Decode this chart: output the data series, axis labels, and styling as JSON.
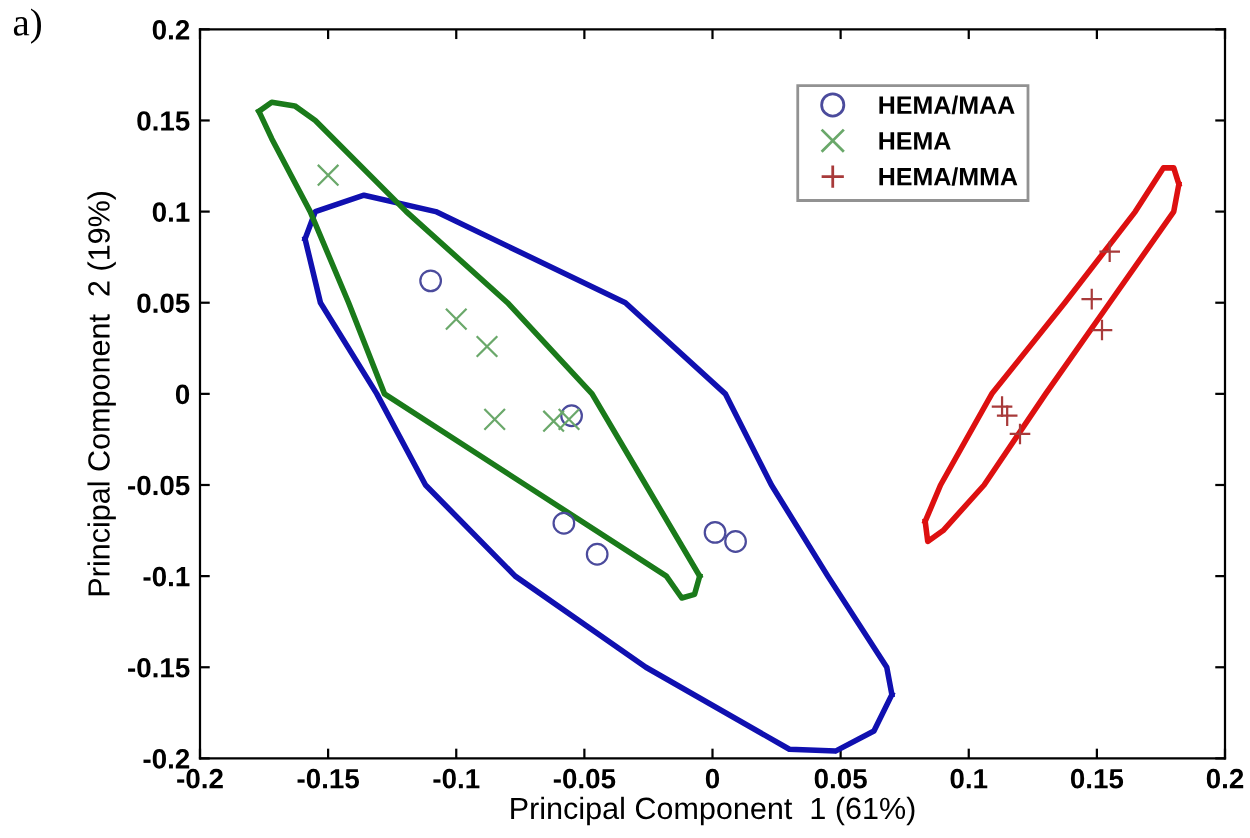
{
  "chart_data": {
    "type": "scatter",
    "xlabel": "Principal Component  1 (61%)",
    "ylabel": "Principal Component  2 (19%)",
    "annotations": [
      "a)"
    ],
    "xlim": [
      -0.2,
      0.2
    ],
    "ylim": [
      -0.2,
      0.2
    ],
    "xticks": [
      -0.2,
      -0.15,
      -0.1,
      -0.05,
      0,
      0.05,
      0.1,
      0.15,
      0.2
    ],
    "yticks": [
      -0.2,
      -0.15,
      -0.1,
      -0.05,
      0,
      0.05,
      0.1,
      0.15,
      0.2
    ],
    "grid": false,
    "legend": "top right",
    "series": [
      {
        "name": "HEMA/MAA",
        "marker": "circle",
        "color": "#4b4b9c",
        "x": [
          -0.11,
          -0.055,
          -0.058,
          -0.045,
          0.001,
          0.009
        ],
        "values": [
          0.062,
          -0.012,
          -0.071,
          -0.088,
          -0.076,
          -0.081
        ]
      },
      {
        "name": "HEMA",
        "marker": "cross",
        "color": "#6aa86a",
        "x": [
          -0.15,
          -0.1,
          -0.088,
          -0.085,
          -0.062,
          -0.056
        ],
        "values": [
          0.12,
          0.041,
          0.026,
          -0.014,
          -0.015,
          -0.014
        ]
      },
      {
        "name": "HEMA/MMA",
        "marker": "plus",
        "color": "#a83a3a",
        "x": [
          0.155,
          0.148,
          0.152,
          0.113,
          0.115,
          0.12
        ],
        "values": [
          0.078,
          0.052,
          0.035,
          -0.007,
          -0.012,
          -0.022
        ]
      },
      {
        "type": "line",
        "marker": "none",
        "line_style": "solid",
        "color": "#1010b0",
        "x": [
          -0.159,
          -0.155,
          -0.136,
          -0.108,
          -0.034,
          0.005,
          0.023,
          0.045,
          0.068,
          0.07
        ],
        "values": [
          0.085,
          0.1,
          0.109,
          0.1,
          0.05,
          0,
          -0.05,
          -0.1,
          -0.15,
          -0.165
        ]
      },
      {
        "type": "line",
        "marker": "none",
        "line_style": "solid",
        "color": "#1010b0",
        "x": [
          -0.159,
          -0.153,
          -0.131,
          -0.112,
          -0.077,
          -0.026,
          0.03,
          0.048,
          0.063,
          0.07
        ],
        "values": [
          0.085,
          0.05,
          0,
          -0.05,
          -0.1,
          -0.15,
          -0.195,
          -0.196,
          -0.185,
          -0.165
        ]
      },
      {
        "type": "line",
        "marker": "none",
        "line_style": "solid",
        "color": "#1a7a1a",
        "x": [
          -0.177,
          -0.172,
          -0.163,
          -0.155,
          -0.1195,
          -0.08,
          -0.047,
          -0.026,
          -0.005
        ],
        "values": [
          0.155,
          0.16,
          0.158,
          0.15,
          0.1,
          0.05,
          0,
          -0.05,
          -0.1
        ]
      },
      {
        "type": "line",
        "marker": "none",
        "line_style": "solid",
        "color": "#1a7a1a",
        "x": [
          -0.177,
          -0.172,
          -0.157,
          -0.142,
          -0.128,
          -0.073,
          -0.018,
          -0.012,
          -0.007,
          -0.005
        ],
        "values": [
          0.155,
          0.14,
          0.1,
          0.05,
          0,
          -0.05,
          -0.1,
          -0.112,
          -0.11,
          -0.1
        ]
      },
      {
        "type": "line",
        "marker": "none",
        "line_style": "solid",
        "color": "#dd1010",
        "x": [
          0.083,
          0.089,
          0.109,
          0.1375,
          0.165,
          0.176,
          0.18,
          0.182
        ],
        "values": [
          -0.07,
          -0.05,
          0,
          0.05,
          0.1,
          0.124,
          0.124,
          0.115
        ]
      },
      {
        "type": "line",
        "marker": "none",
        "line_style": "solid",
        "color": "#dd1010",
        "x": [
          0.083,
          0.084,
          0.09,
          0.106,
          0.13,
          0.155,
          0.18,
          0.182
        ],
        "values": [
          -0.07,
          -0.081,
          -0.075,
          -0.05,
          0,
          0.05,
          0.1,
          0.115
        ]
      }
    ]
  }
}
